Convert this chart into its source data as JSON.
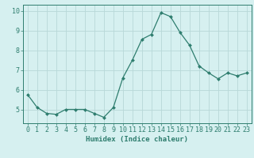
{
  "x": [
    0,
    1,
    2,
    3,
    4,
    5,
    6,
    7,
    8,
    9,
    10,
    11,
    12,
    13,
    14,
    15,
    16,
    17,
    18,
    19,
    20,
    21,
    22,
    23
  ],
  "y": [
    5.75,
    5.1,
    4.8,
    4.75,
    5.0,
    5.0,
    5.0,
    4.8,
    4.6,
    5.1,
    6.6,
    7.5,
    8.55,
    8.8,
    9.9,
    9.7,
    8.9,
    8.25,
    7.2,
    6.85,
    6.55,
    6.85,
    6.7,
    6.85
  ],
  "line_color": "#2e7d6e",
  "marker": "D",
  "marker_size": 2.0,
  "bg_color": "#d6f0f0",
  "grid_color": "#b8d8d8",
  "axis_color": "#2e7d6e",
  "xlabel": "Humidex (Indice chaleur)",
  "xlim": [
    -0.5,
    23.5
  ],
  "ylim": [
    4.3,
    10.3
  ],
  "yticks": [
    5,
    6,
    7,
    8,
    9,
    10
  ],
  "xticks": [
    0,
    1,
    2,
    3,
    4,
    5,
    6,
    7,
    8,
    9,
    10,
    11,
    12,
    13,
    14,
    15,
    16,
    17,
    18,
    19,
    20,
    21,
    22,
    23
  ],
  "xlabel_fontsize": 6.5,
  "tick_fontsize": 6.0
}
